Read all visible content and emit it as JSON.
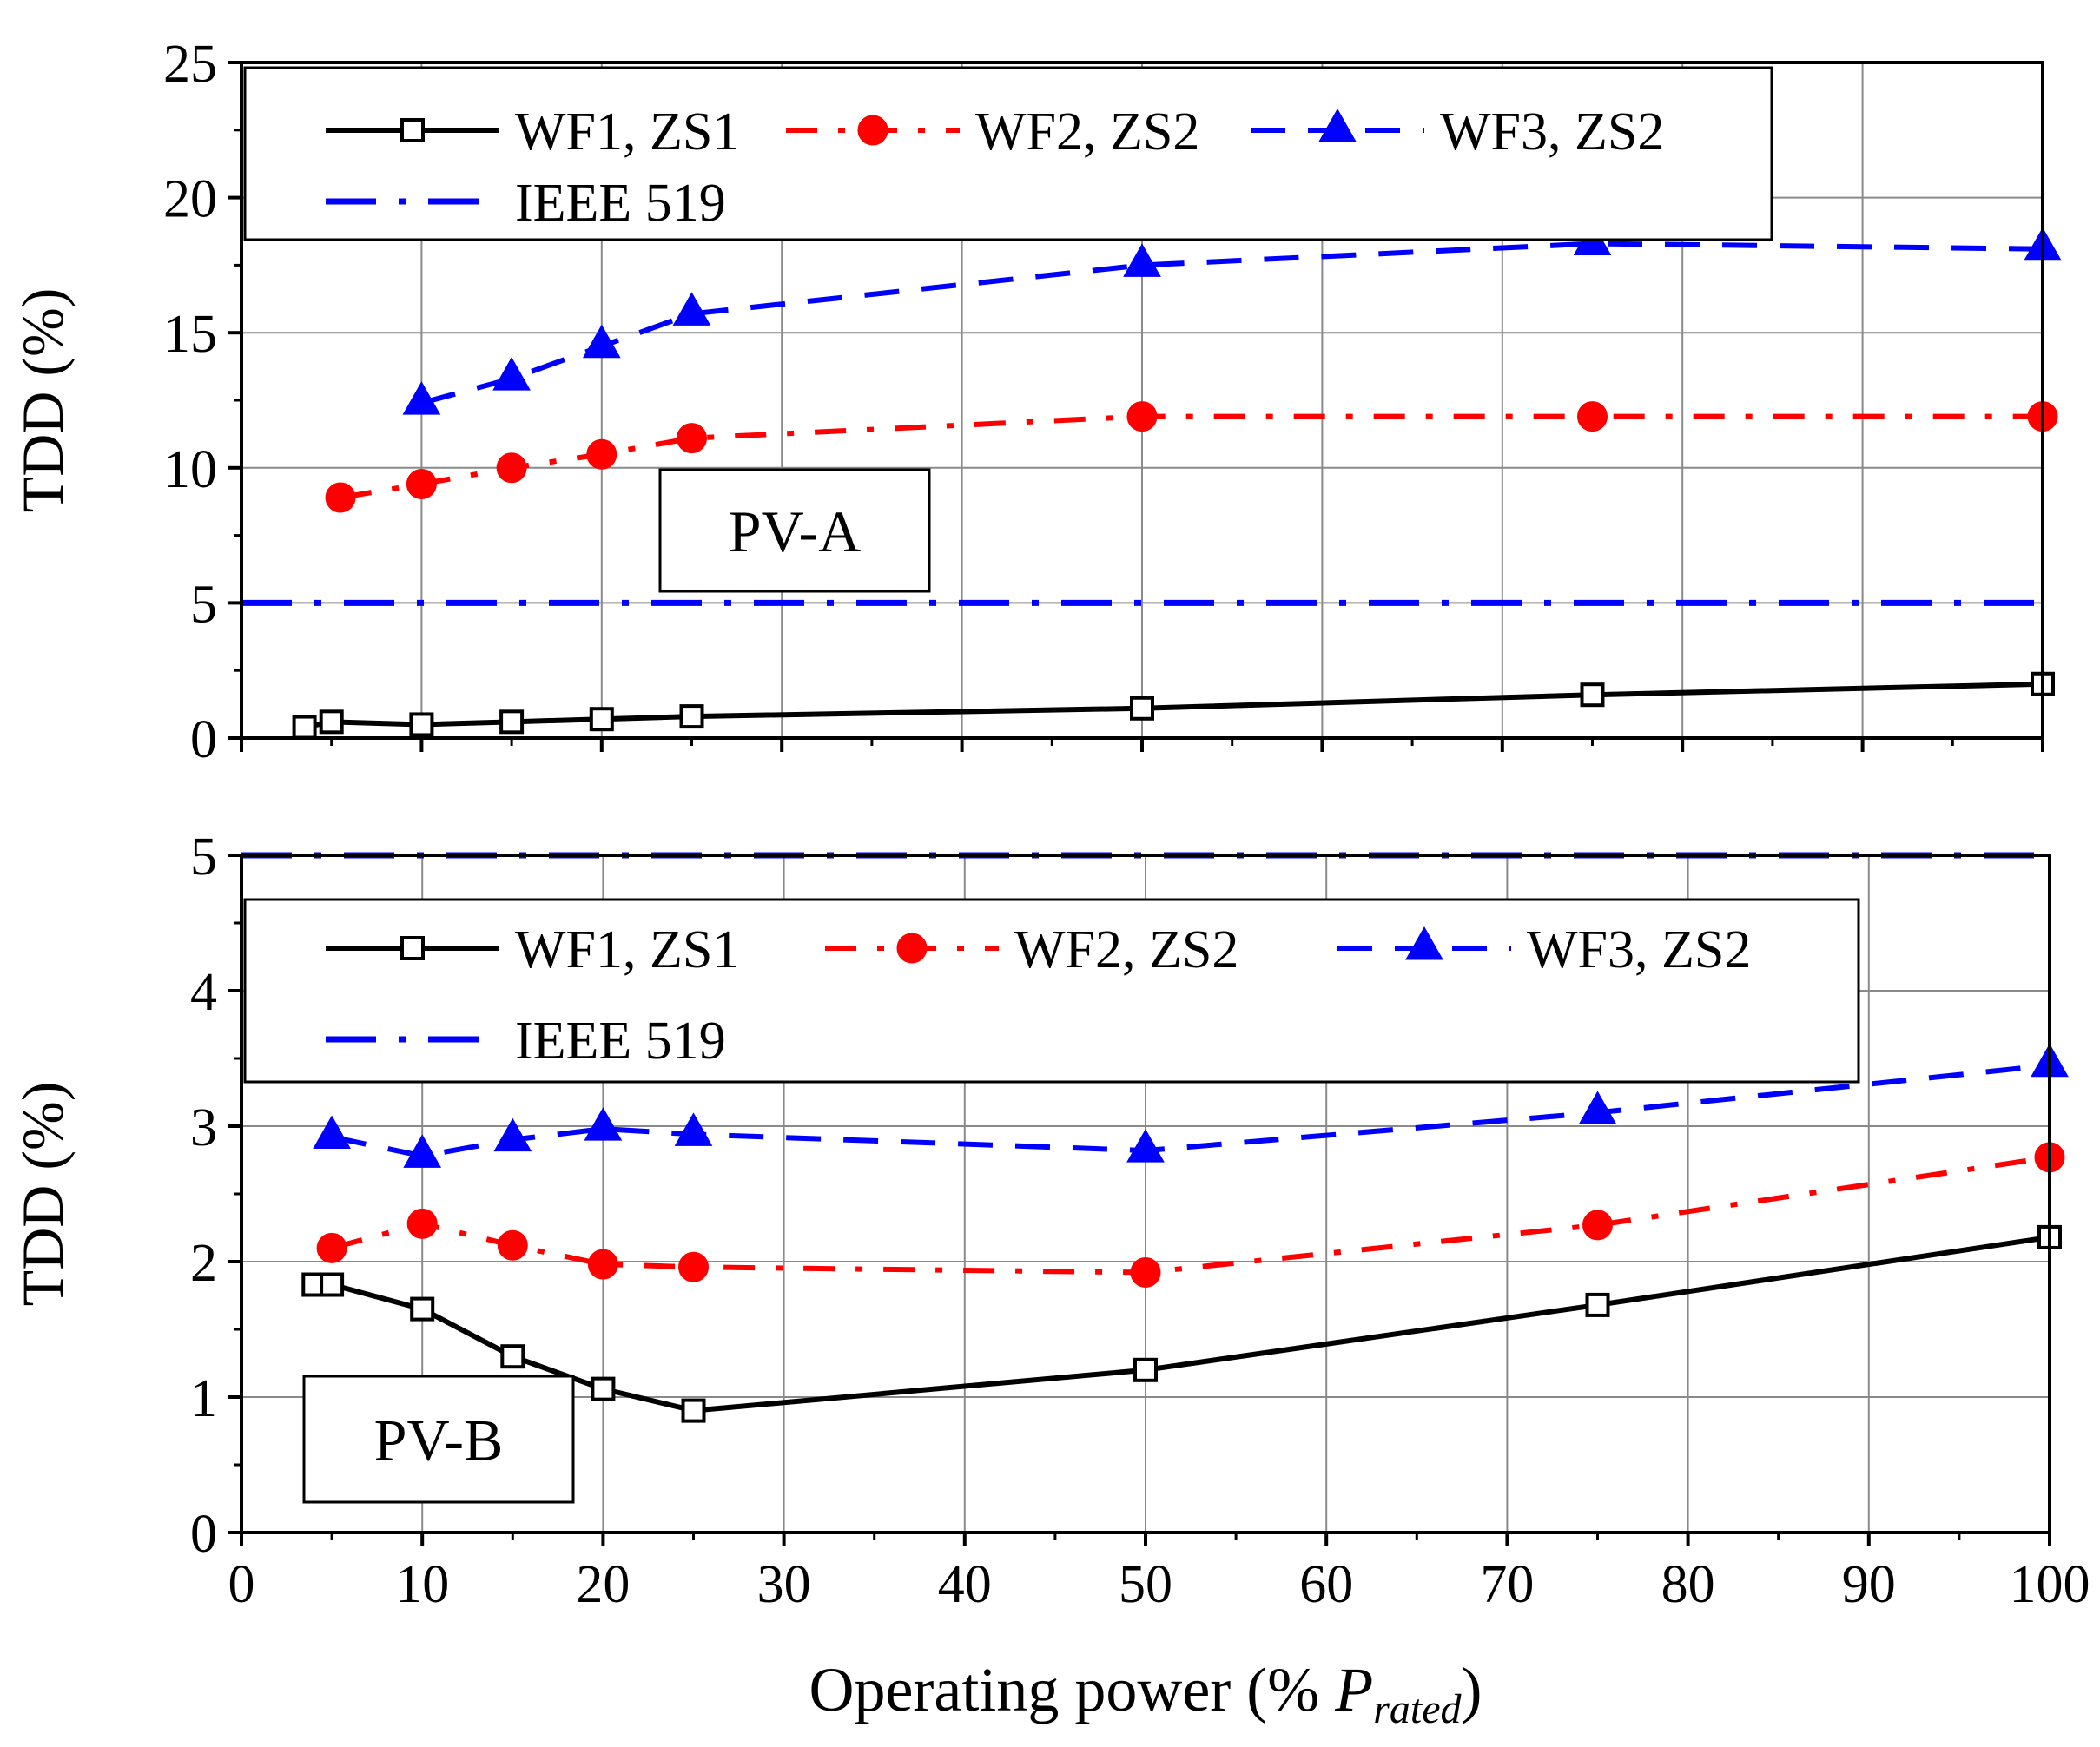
{
  "chart_data": [
    {
      "type": "line",
      "panel_label": "PV-A",
      "ylabel": "TDD (%)",
      "ylim": [
        0,
        25
      ],
      "y_ticks": [
        "0",
        "5",
        "10",
        "15",
        "20",
        "25"
      ],
      "xlim": [
        0,
        100
      ],
      "grid": true,
      "legend_position": "top-left",
      "series": [
        {
          "name": "WF1, ZS1",
          "color": "#000000",
          "marker": "square",
          "dash": "solid",
          "x": [
            3.5,
            5,
            10,
            15,
            20,
            25,
            50,
            75,
            100
          ],
          "y": [
            0.4,
            0.6,
            0.5,
            0.6,
            0.7,
            0.8,
            1.1,
            1.6,
            2.0
          ]
        },
        {
          "name": "WF2, ZS2",
          "color": "#ff0000",
          "marker": "circle",
          "dash": "dashdot",
          "x": [
            5.5,
            10,
            15,
            20,
            25,
            50,
            75,
            100
          ],
          "y": [
            8.9,
            9.4,
            10.0,
            10.5,
            11.1,
            11.9,
            11.9,
            11.9
          ]
        },
        {
          "name": "WF3, ZS2",
          "color": "#0000ff",
          "marker": "triangle",
          "dash": "dashed",
          "x": [
            10,
            15,
            20,
            25,
            50,
            75,
            100
          ],
          "y": [
            12.4,
            13.3,
            14.5,
            15.7,
            17.5,
            18.3,
            18.1
          ]
        },
        {
          "name": "IEEE 519",
          "color": "#0000ff",
          "marker": "none",
          "dash": "dashdot-long",
          "x": [
            0,
            100
          ],
          "y": [
            5,
            5
          ]
        }
      ]
    },
    {
      "type": "line",
      "panel_label": "PV-B",
      "ylabel": "TDD (%)",
      "xlabel_main": "Operating power (% ",
      "xlabel_italic": "P",
      "xlabel_sub": "rated",
      "xlabel_close": ")",
      "ylim": [
        0,
        5
      ],
      "y_ticks": [
        "0",
        "1",
        "2",
        "3",
        "4",
        "5"
      ],
      "xlim": [
        0,
        100
      ],
      "x_ticks": [
        "0",
        "10",
        "20",
        "30",
        "40",
        "50",
        "60",
        "70",
        "80",
        "90",
        "100"
      ],
      "grid": true,
      "legend_position": "top-left",
      "series": [
        {
          "name": "WF1, ZS1",
          "color": "#000000",
          "marker": "square",
          "dash": "solid",
          "x": [
            4,
            5,
            10,
            15,
            20,
            25,
            50,
            75,
            100
          ],
          "y": [
            1.83,
            1.83,
            1.65,
            1.3,
            1.06,
            0.9,
            1.2,
            1.68,
            2.18
          ]
        },
        {
          "name": "WF2, ZS2",
          "color": "#ff0000",
          "marker": "circle",
          "dash": "dashdot",
          "x": [
            5,
            10,
            15,
            20,
            25,
            50,
            75,
            100
          ],
          "y": [
            2.1,
            2.28,
            2.12,
            1.98,
            1.96,
            1.92,
            2.27,
            2.77
          ]
        },
        {
          "name": "WF3, ZS2",
          "color": "#0000ff",
          "marker": "triangle",
          "dash": "dashed",
          "x": [
            5,
            10,
            15,
            20,
            25,
            50,
            75,
            100
          ],
          "y": [
            2.92,
            2.78,
            2.9,
            2.98,
            2.94,
            2.82,
            3.1,
            3.45
          ]
        },
        {
          "name": "IEEE 519",
          "color": "#0000ff",
          "marker": "none",
          "dash": "dashdot-long",
          "x": [
            0,
            100
          ],
          "y": [
            5,
            5
          ]
        }
      ]
    }
  ]
}
